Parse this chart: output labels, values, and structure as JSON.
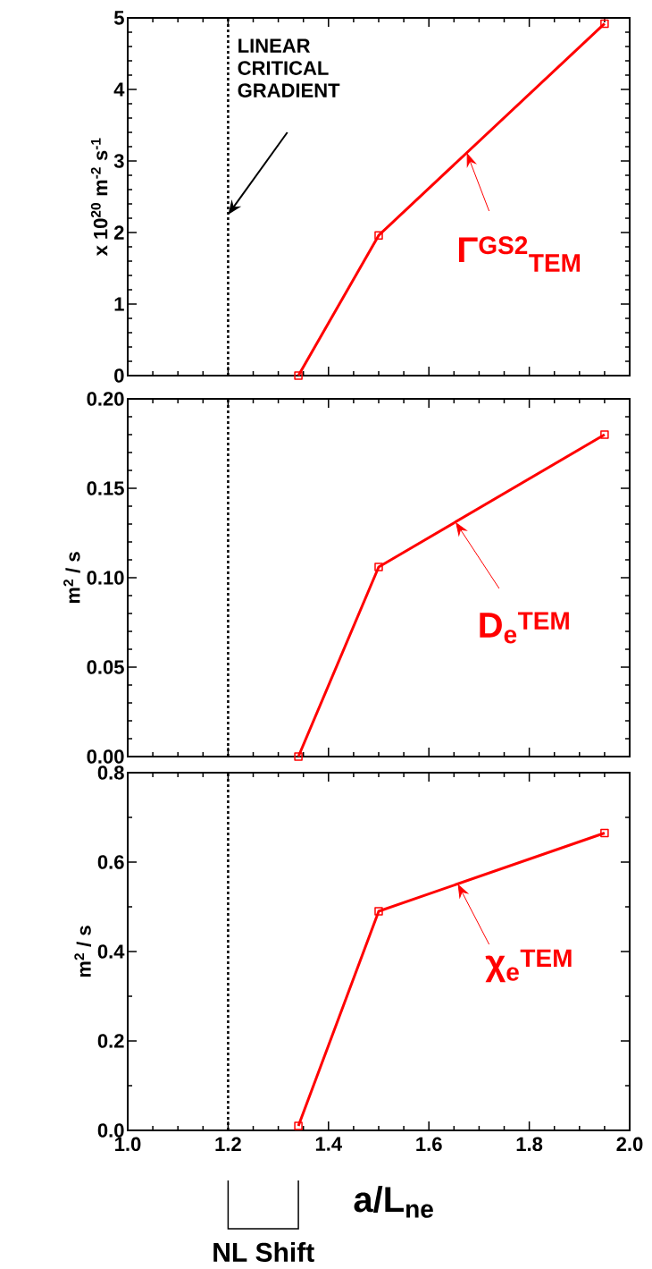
{
  "chart_data": [
    {
      "type": "line",
      "x": [
        1.34,
        1.5,
        1.95
      ],
      "ylabel": "x 10$^{20}$ m$^{-2}$ s$^{-1}$",
      "series": [
        {
          "name": "Γ$^{GS2}$$_{TEM}$",
          "color": "#ff0000",
          "values": [
            0.0,
            1.96,
            4.92
          ]
        }
      ],
      "xlim": [
        1.0,
        2.0
      ],
      "xticks": [
        1.0,
        1.2,
        1.4,
        1.6,
        1.8,
        2.0
      ],
      "ylim": [
        0,
        5
      ],
      "yticks": [
        0,
        1,
        2,
        3,
        4,
        5
      ],
      "tick_labels": "y",
      "marker": "square",
      "line_style": "solid",
      "ref_lines": [
        {
          "axis": "x",
          "value": 1.2,
          "label": "LINEAR CRITICAL GRADIENT",
          "color": "#000000",
          "line_style": "dotted"
        }
      ]
    },
    {
      "type": "line",
      "x": [
        1.34,
        1.5,
        1.95
      ],
      "ylabel": "m$^{2}$ / s",
      "series": [
        {
          "name": "D$_{e}$$^{TEM}$",
          "color": "#ff0000",
          "values": [
            0.0,
            0.106,
            0.18
          ]
        }
      ],
      "xlim": [
        1.0,
        2.0
      ],
      "xticks": [
        1.0,
        1.2,
        1.4,
        1.6,
        1.8,
        2.0
      ],
      "ylim": [
        0,
        0.2
      ],
      "yticks": [
        {
          "value": 0,
          "label": "0.00"
        },
        {
          "value": 0.05,
          "label": "0.05"
        },
        {
          "value": 0.1,
          "label": "0.10"
        },
        {
          "value": 0.15,
          "label": "0.15"
        },
        {
          "value": 0.2,
          "label": "0.20"
        }
      ],
      "tick_labels": "y",
      "marker": "square",
      "line_style": "solid",
      "ref_lines": [
        {
          "axis": "x",
          "value": 1.2,
          "color": "#000000",
          "line_style": "dotted"
        }
      ]
    },
    {
      "type": "line",
      "x": [
        1.34,
        1.5,
        1.95
      ],
      "xlabel": "a/L$_{ne}$",
      "ylabel": "m$^{2}$ / s",
      "series": [
        {
          "name": "χ$_{e}$$^{TEM}$",
          "color": "#ff0000",
          "values": [
            0.01,
            0.49,
            0.665
          ]
        }
      ],
      "xlim": [
        1.0,
        2.0
      ],
      "xticks": [
        {
          "value": 1.0,
          "label": "1.0"
        },
        {
          "value": 1.2,
          "label": "1.2"
        },
        {
          "value": 1.4,
          "label": "1.4"
        },
        {
          "value": 1.6,
          "label": "1.6"
        },
        {
          "value": 1.8,
          "label": "1.8"
        },
        {
          "value": 2.0,
          "label": "2.0"
        }
      ],
      "ylim": [
        0,
        0.8
      ],
      "yticks": [
        {
          "value": 0,
          "label": "0.0"
        },
        {
          "value": 0.2,
          "label": "0.2"
        },
        {
          "value": 0.4,
          "label": "0.4"
        },
        {
          "value": 0.6,
          "label": "0.6"
        },
        {
          "value": 0.8,
          "label": "0.8"
        }
      ],
      "marker": "square",
      "line_style": "solid",
      "ref_lines": [
        {
          "axis": "x",
          "value": 1.2,
          "color": "#000000",
          "line_style": "dotted"
        }
      ],
      "annotations": [
        "NL Shift"
      ]
    }
  ]
}
